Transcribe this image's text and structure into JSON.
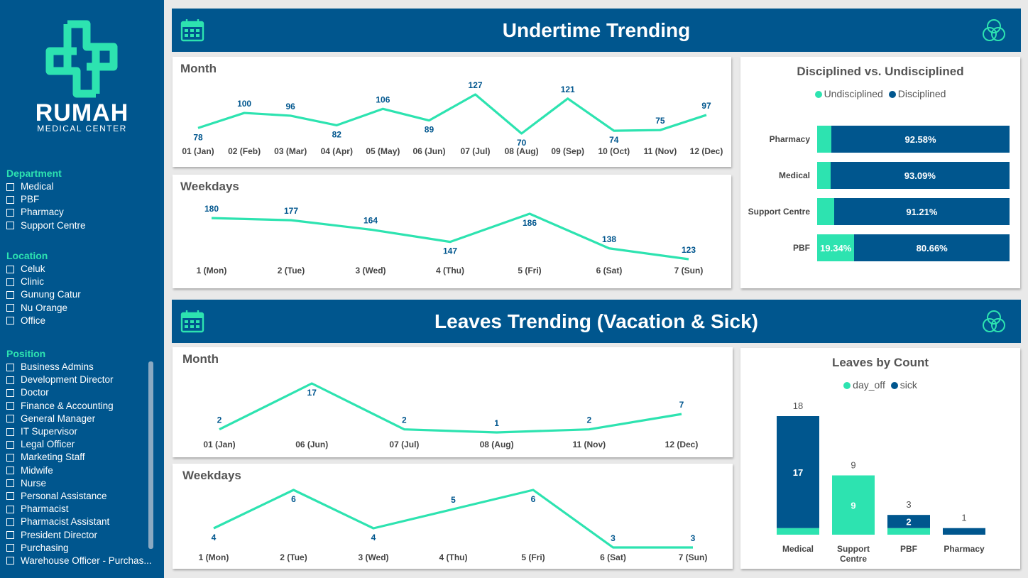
{
  "colors": {
    "teal": "#2de3b0",
    "navy": "#00568e",
    "sidebar": "#00568e"
  },
  "sidebar": {
    "brand_name": "RUMAH",
    "brand_sub": "MEDICAL CENTER",
    "department": {
      "title": "Department",
      "items": [
        "Medical",
        "PBF",
        "Pharmacy",
        "Support Centre"
      ]
    },
    "location": {
      "title": "Location",
      "items": [
        "Celuk",
        "Clinic",
        "Gunung Catur",
        "Nu Orange",
        "Office"
      ]
    },
    "position": {
      "title": "Position",
      "items": [
        "Business Admins",
        "Development Director",
        "Doctor",
        "Finance & Accounting",
        "General Manager",
        "IT Supervisor",
        "Legal Officer",
        "Marketing Staff",
        "Midwife",
        "Nurse",
        "Personal Assistance",
        "Pharmacist",
        "Pharmacist Assistant",
        "President Director",
        "Purchasing",
        "Warehouse Officer - Purchas..."
      ]
    }
  },
  "undertime": {
    "banner_title": "Undertime Trending",
    "month_title": "Month",
    "weekdays_title": "Weekdays",
    "disc_title": "Disciplined vs. Undisciplined",
    "legend_undisc": "Undisciplined",
    "legend_disc": "Disciplined"
  },
  "leaves": {
    "banner_title": "Leaves Trending (Vacation & Sick)",
    "month_title": "Month",
    "weekdays_title": "Weekdays",
    "count_title": "Leaves by Count",
    "legend_dayoff": "day_off",
    "legend_sick": "sick"
  },
  "chart_data": [
    {
      "type": "line",
      "id": "ut_month",
      "categories": [
        "01 (Jan)",
        "02 (Feb)",
        "03 (Mar)",
        "04 (Apr)",
        "05 (May)",
        "06 (Jun)",
        "07 (Jul)",
        "08 (Aug)",
        "09 (Sep)",
        "10 (Oct)",
        "11 (Nov)",
        "12 (Dec)"
      ],
      "values": [
        78,
        100,
        96,
        82,
        106,
        89,
        127,
        70,
        121,
        74,
        75,
        97
      ]
    },
    {
      "type": "line",
      "id": "ut_weekdays",
      "categories": [
        "1 (Mon)",
        "2 (Tue)",
        "3 (Wed)",
        "4 (Thu)",
        "5 (Fri)",
        "6 (Sat)",
        "7 (Sun)"
      ],
      "values": [
        180,
        177,
        164,
        147,
        186,
        138,
        123
      ]
    },
    {
      "type": "bar",
      "id": "disc",
      "orientation": "horizontal",
      "stacked": true,
      "categories": [
        "Pharmacy",
        "Medical",
        "Support Centre",
        "PBF"
      ],
      "series": [
        {
          "name": "Undisciplined",
          "values": [
            7.42,
            6.91,
            8.79,
            19.34
          ]
        },
        {
          "name": "Disciplined",
          "values": [
            92.58,
            93.09,
            91.21,
            80.66
          ]
        }
      ],
      "labels": {
        "Undisciplined": [
          "",
          "",
          "",
          "19.34%"
        ],
        "Disciplined": [
          "92.58%",
          "93.09%",
          "91.21%",
          "80.66%"
        ]
      }
    },
    {
      "type": "line",
      "id": "lv_month",
      "categories": [
        "01 (Jan)",
        "06 (Jun)",
        "07 (Jul)",
        "08 (Aug)",
        "11 (Nov)",
        "12 (Dec)"
      ],
      "values": [
        2,
        17,
        2,
        1,
        2,
        7
      ]
    },
    {
      "type": "line",
      "id": "lv_weekdays",
      "categories": [
        "1 (Mon)",
        "2 (Tue)",
        "3 (Wed)",
        "4 (Thu)",
        "5 (Fri)",
        "6 (Sat)",
        "7 (Sun)"
      ],
      "values": [
        4,
        6,
        4,
        5,
        6,
        3,
        3
      ]
    },
    {
      "type": "bar",
      "id": "lv_count",
      "stacked": true,
      "categories": [
        "Medical",
        "Support Centre",
        "PBF",
        "Pharmacy"
      ],
      "series": [
        {
          "name": "day_off",
          "values": [
            1,
            9,
            1,
            0
          ]
        },
        {
          "name": "sick",
          "values": [
            17,
            0,
            2,
            1
          ]
        }
      ],
      "totals": [
        18,
        9,
        3,
        1
      ]
    }
  ]
}
